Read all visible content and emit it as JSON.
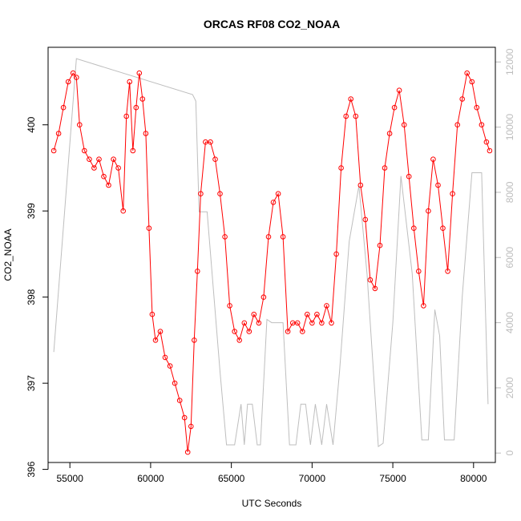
{
  "chart_data": {
    "type": "scatter",
    "title": "ORCAS RF08 CO2_NOAA",
    "xlabel": "UTC Seconds",
    "ylabel": "CO2_NOAA",
    "xlim": [
      53650,
      81350
    ],
    "ylim": [
      396.08,
      400.9
    ],
    "y2lim": [
      -290,
      12450
    ],
    "x_ticks": [
      55000,
      60000,
      65000,
      70000,
      75000,
      80000
    ],
    "y_ticks": [
      396,
      397,
      398,
      399,
      400
    ],
    "y2_ticks": [
      0,
      2000,
      4000,
      6000,
      8000,
      10000,
      12000
    ],
    "grid": false,
    "series": [
      {
        "color": "#ff0000",
        "marker": "open-circle",
        "connected": true,
        "x": [
          54000,
          54300,
          54600,
          54900,
          55200,
          55400,
          55600,
          55900,
          56200,
          56500,
          56800,
          57100,
          57400,
          57700,
          58000,
          58300,
          58500,
          58700,
          58900,
          59100,
          59300,
          59500,
          59700,
          59900,
          60100,
          60300,
          60600,
          60900,
          61200,
          61500,
          61800,
          62100,
          62300,
          62500,
          62700,
          62900,
          63100,
          63400,
          63700,
          64000,
          64300,
          64600,
          64900,
          65200,
          65500,
          65800,
          66100,
          66400,
          66700,
          67000,
          67300,
          67600,
          67900,
          68200,
          68500,
          68800,
          69100,
          69400,
          69700,
          70000,
          70300,
          70600,
          70900,
          71200,
          71500,
          71800,
          72100,
          72400,
          72700,
          73000,
          73300,
          73600,
          73900,
          74200,
          74500,
          74800,
          75100,
          75400,
          75700,
          76000,
          76300,
          76600,
          76900,
          77200,
          77500,
          77800,
          78100,
          78400,
          78700,
          79000,
          79300,
          79600,
          79900,
          80200,
          80500,
          80800,
          81000
        ],
        "y": [
          399.7,
          399.9,
          400.2,
          400.5,
          400.6,
          400.55,
          400.0,
          399.7,
          399.6,
          399.5,
          399.6,
          399.4,
          399.3,
          399.6,
          399.5,
          399.0,
          400.1,
          400.5,
          399.7,
          400.2,
          400.6,
          400.3,
          399.9,
          398.8,
          397.8,
          397.5,
          397.6,
          397.3,
          397.2,
          397.0,
          396.8,
          396.6,
          396.2,
          396.5,
          397.5,
          398.3,
          399.2,
          399.8,
          399.8,
          399.6,
          399.2,
          398.7,
          397.9,
          397.6,
          397.5,
          397.7,
          397.6,
          397.8,
          397.7,
          398.0,
          398.7,
          399.1,
          399.2,
          398.7,
          397.6,
          397.7,
          397.7,
          397.6,
          397.8,
          397.7,
          397.8,
          397.7,
          397.9,
          397.7,
          398.5,
          399.5,
          400.1,
          400.3,
          400.1,
          399.3,
          398.9,
          398.2,
          398.1,
          398.6,
          399.5,
          399.9,
          400.2,
          400.4,
          400.0,
          399.4,
          398.8,
          398.3,
          397.9,
          399.0,
          399.6,
          399.3,
          398.8,
          398.3,
          399.2,
          400.0,
          400.3,
          400.6,
          400.5,
          400.2,
          400.0,
          399.8,
          399.7
        ]
      },
      {
        "color": "#bebebe",
        "axis": "right",
        "x": [
          54000,
          55400,
          62600,
          62800,
          63000,
          63500,
          64300,
          64700,
          65200,
          65600,
          65800,
          66000,
          66300,
          66600,
          66800,
          67200,
          67500,
          68200,
          68600,
          69000,
          69300,
          69600,
          69900,
          70200,
          70600,
          70900,
          71300,
          71700,
          72300,
          72900,
          73400,
          74100,
          74400,
          75000,
          75500,
          76200,
          76800,
          77200,
          77600,
          77900,
          78200,
          78800,
          79300,
          79900,
          80500,
          80900
        ],
        "y": [
          3100,
          12100,
          11000,
          10800,
          7400,
          7400,
          2500,
          250,
          250,
          1500,
          250,
          1500,
          1500,
          250,
          250,
          4100,
          4000,
          4000,
          250,
          250,
          1500,
          1500,
          250,
          1500,
          250,
          1500,
          250,
          2500,
          6500,
          8200,
          5500,
          200,
          300,
          4000,
          8500,
          5500,
          400,
          400,
          4400,
          3600,
          400,
          400,
          4800,
          8600,
          8600,
          1500
        ]
      }
    ]
  }
}
